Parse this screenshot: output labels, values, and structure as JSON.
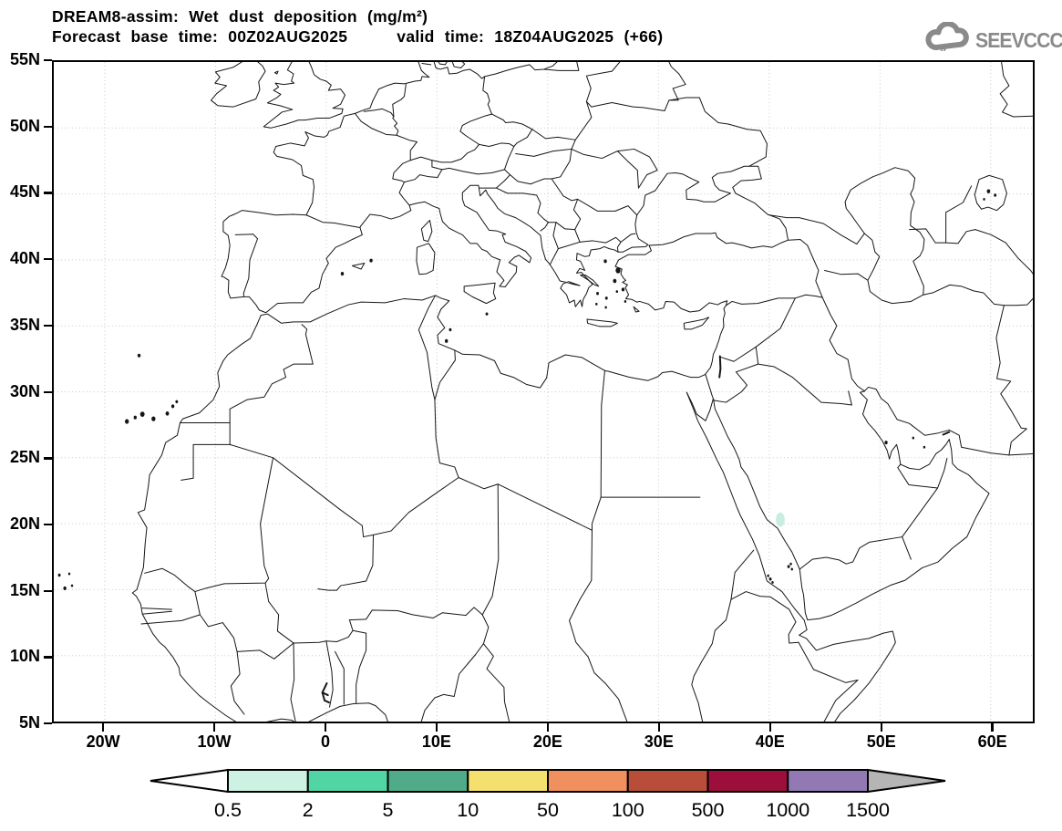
{
  "header": {
    "line1": "DREAM8-assim: Wet dust deposition (mg/m²)",
    "line2_left": "Forecast base time: 00Z02AUG2025",
    "line2_right": "valid time: 18Z04AUG2025 (+66)"
  },
  "logo": {
    "text": "SEEVCCC",
    "color": "#8a8a8a",
    "icon": "cloud-icon"
  },
  "map": {
    "lat_range": [
      5,
      55
    ],
    "lon_range": [
      -24.6,
      63.8
    ],
    "grid_style": "dotted",
    "grid_color": "#c8c8c8",
    "lat_ticks": [
      {
        "label": "55N",
        "value": 55
      },
      {
        "label": "50N",
        "value": 50
      },
      {
        "label": "45N",
        "value": 45
      },
      {
        "label": "40N",
        "value": 40
      },
      {
        "label": "35N",
        "value": 35
      },
      {
        "label": "30N",
        "value": 30
      },
      {
        "label": "25N",
        "value": 25
      },
      {
        "label": "20N",
        "value": 20
      },
      {
        "label": "15N",
        "value": 15
      },
      {
        "label": "10N",
        "value": 10
      },
      {
        "label": "5N",
        "value": 5
      }
    ],
    "lon_ticks": [
      {
        "label": "20W",
        "value": -20
      },
      {
        "label": "10W",
        "value": -10
      },
      {
        "label": "0",
        "value": 0
      },
      {
        "label": "10E",
        "value": 10
      },
      {
        "label": "20E",
        "value": 20
      },
      {
        "label": "30E",
        "value": 30
      },
      {
        "label": "40E",
        "value": 40
      },
      {
        "label": "50E",
        "value": 50
      },
      {
        "label": "60E",
        "value": 60
      }
    ],
    "deposition_spots": [
      {
        "lon": 41.0,
        "lat": 20.3,
        "rx": 0.4,
        "ry": 0.55,
        "level": "0.5-2",
        "color": "#c9ede2"
      }
    ]
  },
  "colorbar": {
    "labels": [
      "0.5",
      "2",
      "5",
      "10",
      "50",
      "100",
      "500",
      "1000",
      "1500"
    ],
    "cell_colors": [
      "#cdf2e3",
      "#52d5a4",
      "#4fab89",
      "#f4e06e",
      "#f0905f",
      "#b84d39",
      "#9c0f3c",
      "#9379b4"
    ],
    "under_arrow_color": "#ffffff",
    "over_arrow_color": "#b5b5b5",
    "outline_color": "#000000"
  }
}
